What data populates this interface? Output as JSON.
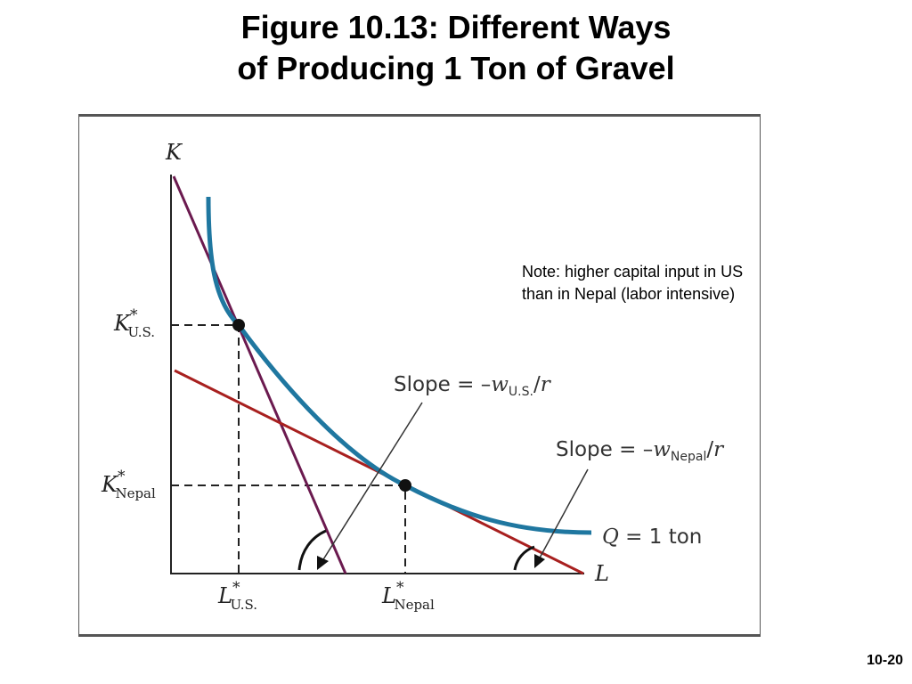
{
  "slide": {
    "title_line1": "Figure 10.13: Different Ways",
    "title_line2": "of Producing 1 Ton of Gravel",
    "note": "Note: higher capital input in US than in Nepal (labor intensive)",
    "page_number": "10-20"
  },
  "diagram": {
    "axis_y": "K",
    "axis_x": "L",
    "k_us": {
      "base": "K",
      "star": "*",
      "sub": "U.S."
    },
    "k_nepal": {
      "base": "K",
      "star": "*",
      "sub": "Nepal"
    },
    "l_us": {
      "base": "L",
      "star": "*",
      "sub": "U.S."
    },
    "l_nepal": {
      "base": "L",
      "star": "*",
      "sub": "Nepal"
    },
    "slope_us": {
      "prefix": "Slope = –",
      "w": "w",
      "sub": "U.S.",
      "suffix": "/",
      "r": "r"
    },
    "slope_nepal": {
      "prefix": "Slope = –",
      "w": "w",
      "sub": "Nepal",
      "suffix": "/",
      "r": "r"
    },
    "isoquant": {
      "q": "Q",
      "text": " = 1 ton"
    },
    "colors": {
      "isoquant": "#1f77a0",
      "isocost_us": "#6b1a4f",
      "isocost_nepal": "#a8201f",
      "frame": "#555555"
    }
  }
}
